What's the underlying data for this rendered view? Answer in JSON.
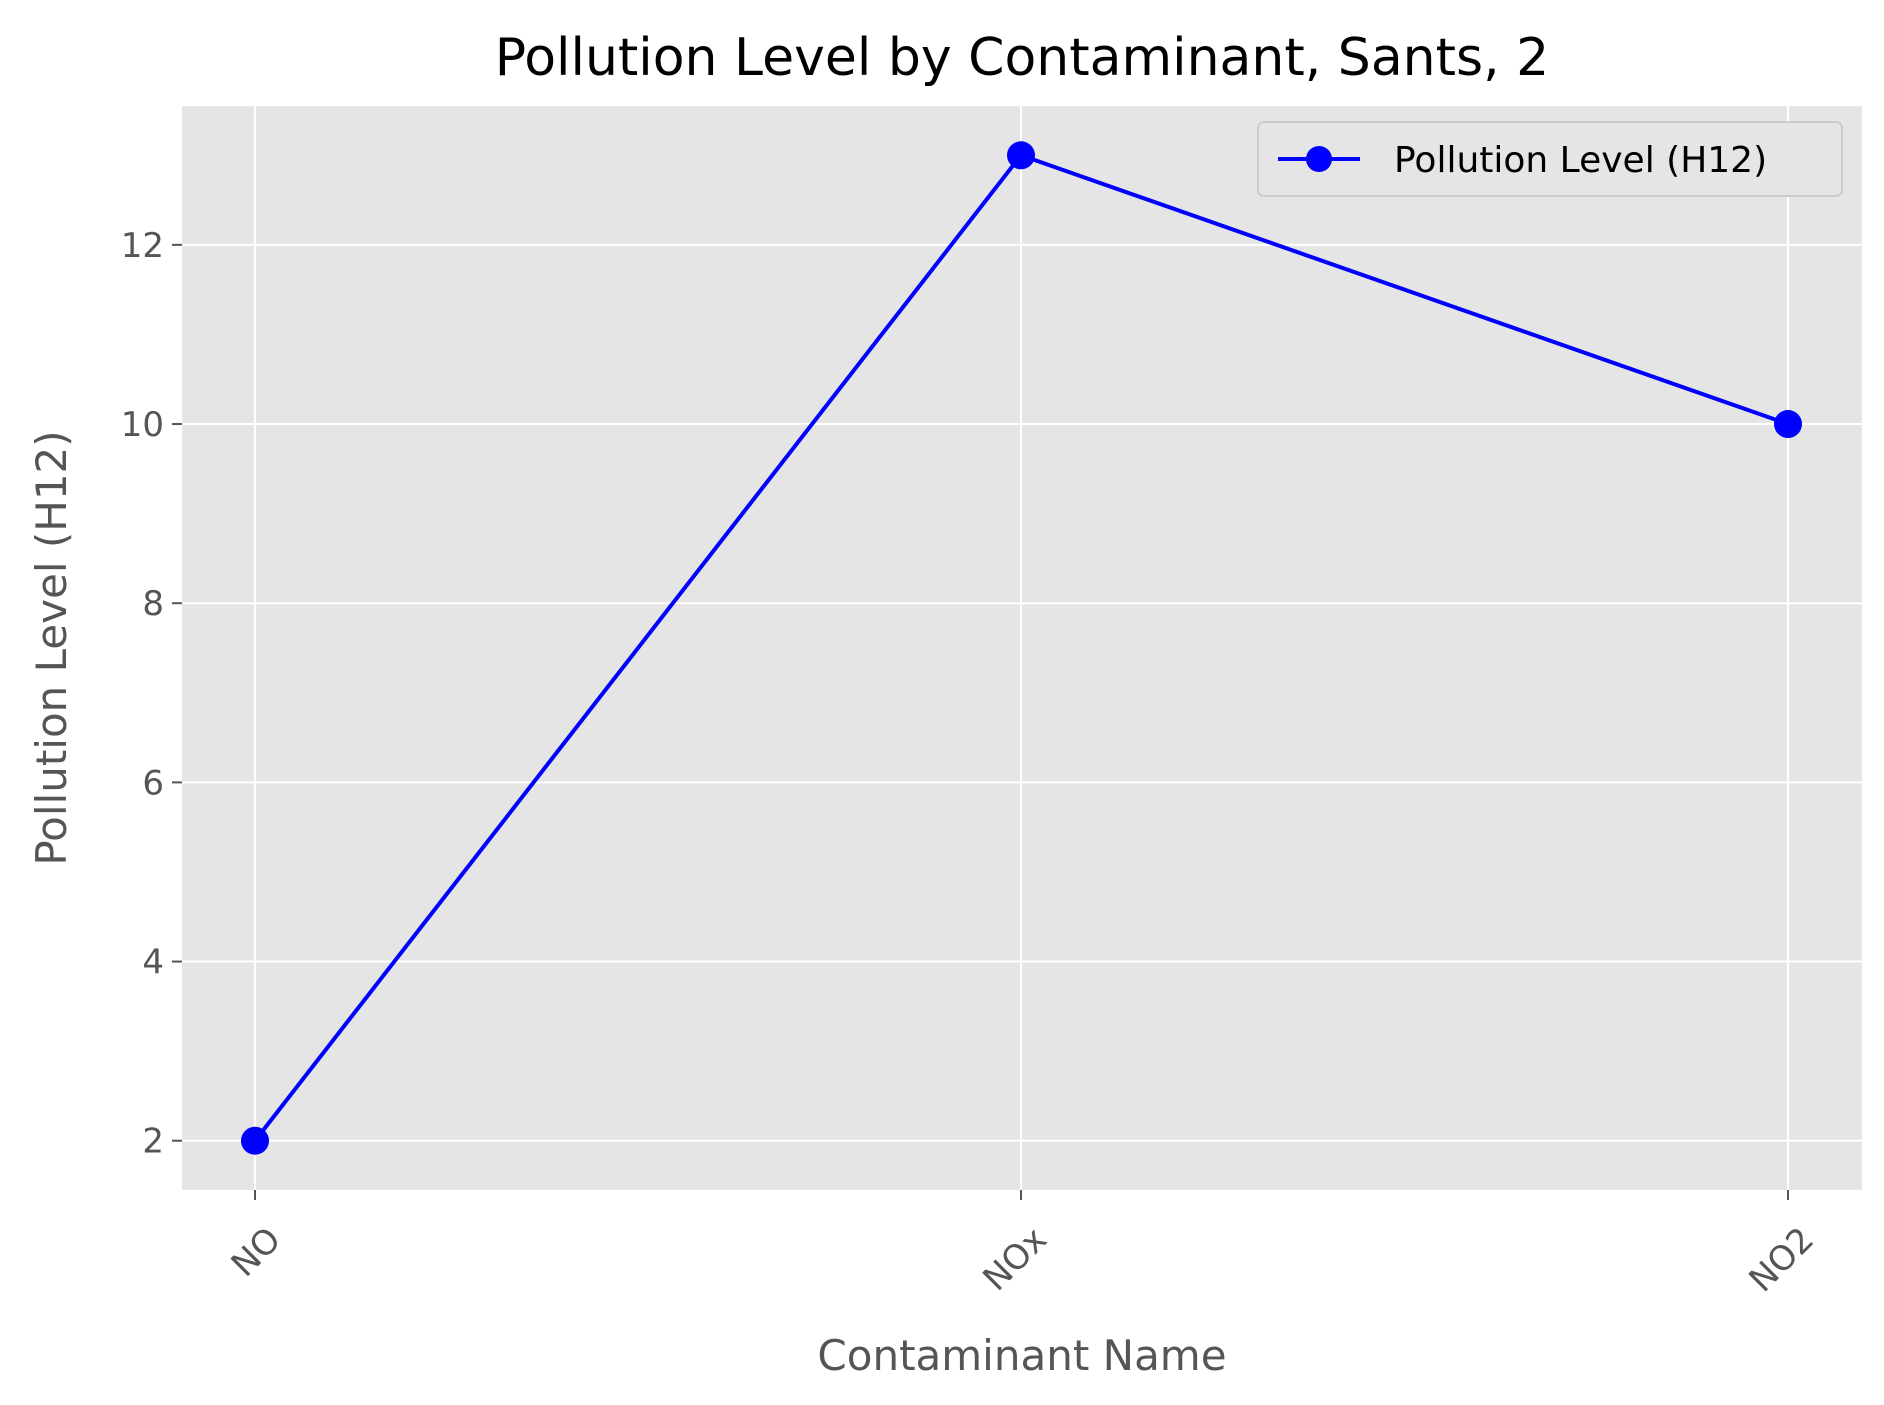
{
  "chart_data": {
    "type": "line",
    "title": "Pollution Level by Contaminant, Sants, 2",
    "xlabel": "Contaminant Name",
    "ylabel": "Pollution Level (H12)",
    "categories": [
      "NO",
      "NOx",
      "NO2"
    ],
    "series": [
      {
        "name": "Pollution Level (H12)",
        "values": [
          2,
          13,
          10
        ],
        "color": "#0000ff",
        "marker": "circle"
      }
    ],
    "ylim": [
      1.45,
      13.55
    ],
    "yticks": [
      2,
      4,
      6,
      8,
      10,
      12
    ],
    "grid": true,
    "legend_position": "top-right",
    "background_color": "#e5e5e5",
    "grid_color": "#ffffff",
    "xtick_rotation": 45
  }
}
